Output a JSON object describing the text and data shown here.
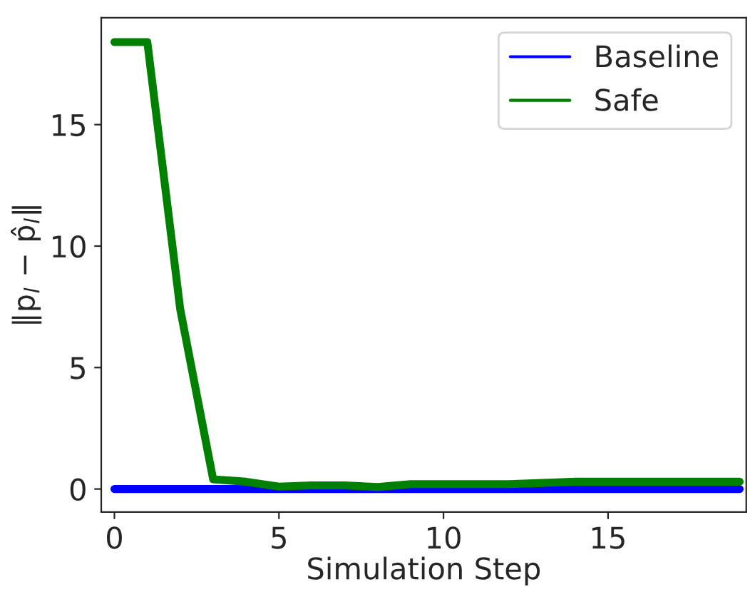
{
  "chart_data": {
    "type": "line",
    "xlabel": "Simulation Step",
    "ylabel": "‖p$_{l}$ − p̂$_{l}$‖",
    "x": [
      0,
      1,
      2,
      3,
      4,
      5,
      6,
      7,
      8,
      9,
      10,
      11,
      12,
      13,
      14,
      15,
      16,
      17,
      18,
      19
    ],
    "series": [
      {
        "name": "Baseline",
        "color": "#0000ff",
        "values": [
          0,
          0,
          0,
          0,
          0,
          0,
          0,
          0,
          0,
          0,
          0,
          0,
          0,
          0,
          0,
          0,
          0,
          0,
          0,
          0
        ]
      },
      {
        "name": "Safe",
        "color": "#008000",
        "values": [
          18.4,
          18.4,
          7.4,
          0.4,
          0.3,
          0.1,
          0.15,
          0.15,
          0.08,
          0.2,
          0.2,
          0.2,
          0.2,
          0.25,
          0.3,
          0.3,
          0.3,
          0.3,
          0.3,
          0.3
        ]
      }
    ],
    "xlim": [
      -0.4,
      19.2
    ],
    "ylim": [
      -0.95,
      19.4
    ],
    "xticks": [
      0,
      5,
      10,
      15
    ],
    "yticks": [
      0,
      5,
      10,
      15
    ],
    "legend": "top right",
    "grid": false,
    "line_style": "solid",
    "marker": "none"
  }
}
